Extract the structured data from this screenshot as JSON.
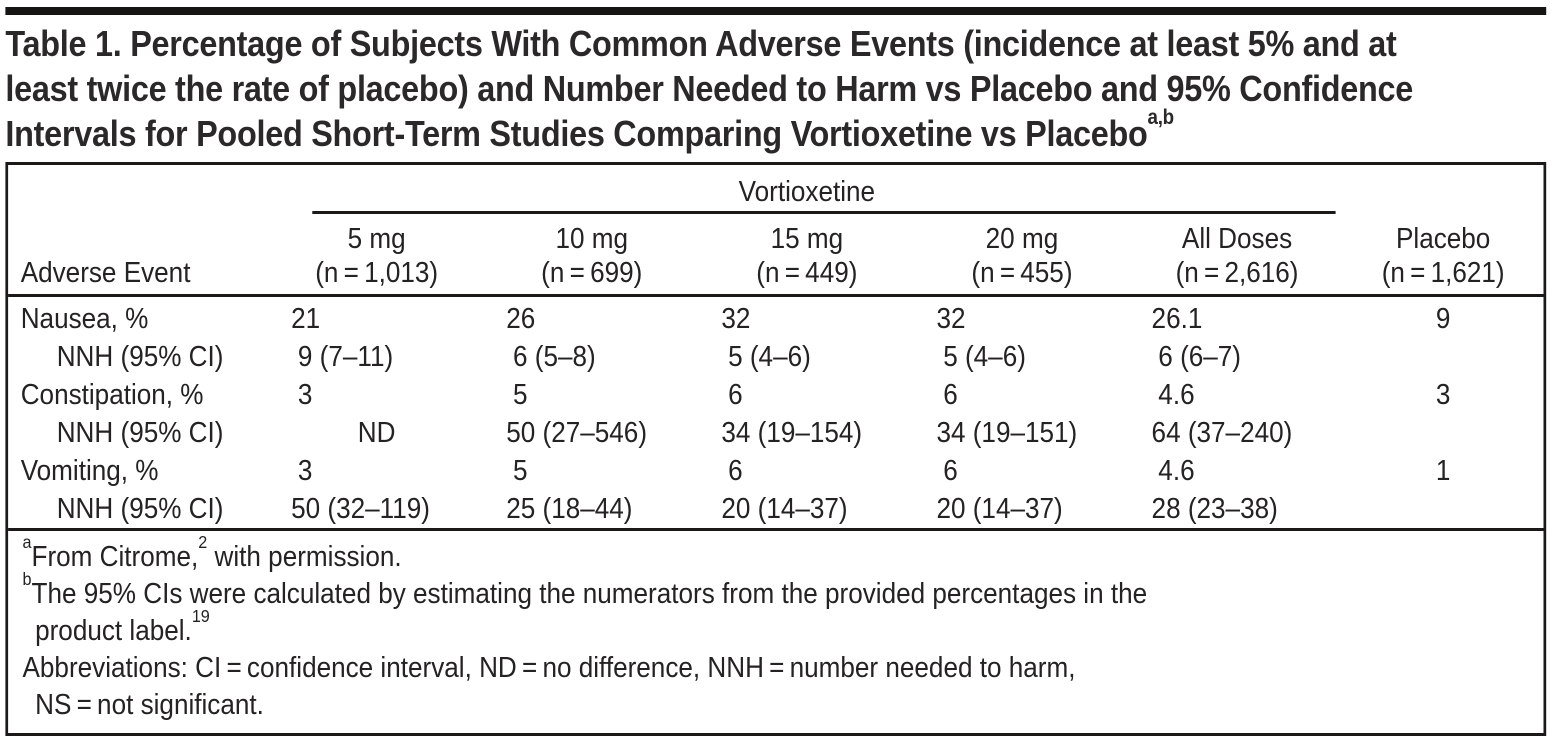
{
  "colors": {
    "ink": "#1b1a19",
    "title_text": "#2a2828",
    "body_text": "#242222",
    "top_bar": "#161514"
  },
  "title": {
    "lines": [
      "Table 1. Percentage of Subjects With Common Adverse Events (incidence at least 5% and at",
      "least twice the rate of placebo) and Number Needed to Harm vs Placebo and 95% Confidence",
      "Intervals for Pooled Short-Term Studies Comparing Vortioxetine vs Placebo"
    ],
    "superscript": "a,b"
  },
  "table": {
    "group_header": "Vortioxetine",
    "stub_header": "Adverse Event",
    "columns": [
      {
        "dose": "5 mg",
        "n": "(n = 1,013)"
      },
      {
        "dose": "10 mg",
        "n": "(n = 699)"
      },
      {
        "dose": "15 mg",
        "n": "(n = 449)"
      },
      {
        "dose": "20 mg",
        "n": "(n = 455)"
      },
      {
        "dose": "All Doses",
        "n": "(n = 2,616)"
      },
      {
        "dose": "Placebo",
        "n": "(n = 1,621)"
      }
    ],
    "rows": [
      {
        "label": "Nausea, %",
        "indent": false,
        "values": [
          "21",
          "26",
          "32",
          "32",
          "26.1",
          "9"
        ]
      },
      {
        "label": "NNH (95% CI)",
        "indent": true,
        "values": [
          "9 (7–11)",
          "6 (5–8)",
          "5 (4–6)",
          "5 (4–6)",
          "6 (6–7)",
          ""
        ]
      },
      {
        "label": "Constipation, %",
        "indent": false,
        "values": [
          "3",
          "5",
          "6",
          "6",
          "4.6",
          "3"
        ]
      },
      {
        "label": "NNH (95% CI)",
        "indent": true,
        "values": [
          "ND",
          "50 (27–546)",
          "34 (19–154)",
          "34 (19–151)",
          "64 (37–240)",
          ""
        ]
      },
      {
        "label": "Vomiting, %",
        "indent": false,
        "values": [
          "3",
          "5",
          "6",
          "6",
          "4.6",
          "1"
        ]
      },
      {
        "label": "NNH (95% CI)",
        "indent": true,
        "values": [
          "50 (32–119)",
          "25 (18–44)",
          "20 (14–37)",
          "20 (14–37)",
          "28 (23–38)",
          ""
        ]
      }
    ]
  },
  "footnotes": {
    "a": {
      "marker": "a",
      "text": "From Citrome,",
      "cite": "2",
      "tail": " with permission."
    },
    "b": {
      "marker": "b",
      "line1": "The 95% CIs were calculated by estimating the numerators from the provided percentages in the",
      "line2": "product label.",
      "cite": "19"
    },
    "abbr": {
      "line1": "Abbreviations: CI = confidence interval, ND = no difference, NNH = number needed to harm,",
      "line2": "NS = not significant."
    }
  }
}
